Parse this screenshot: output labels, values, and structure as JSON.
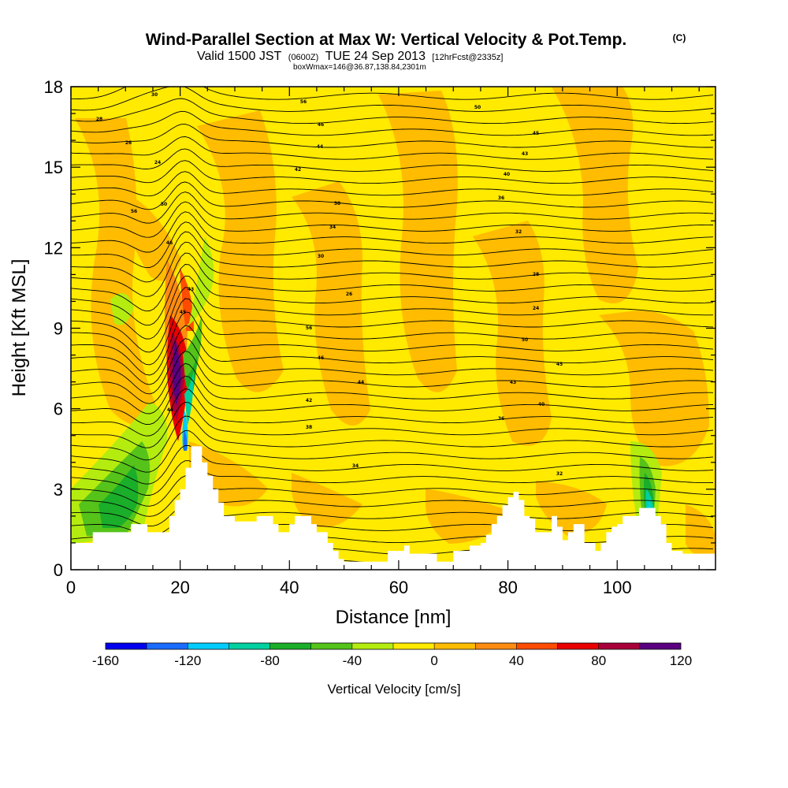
{
  "title": {
    "main": "Wind-Parallel Section at Max W: Vertical Velocity & Pot.Temp.",
    "copyright": "(C)",
    "valid_prefix": "Valid 1500 JST",
    "valid_utc": "(0600Z)",
    "valid_date": "TUE 24 Sep 2013",
    "forecast": "[12hrFcst@2335z]",
    "box": "boxWmax=146@36.87,138.84,2301m"
  },
  "chart_data": {
    "type": "heatmap",
    "xlabel": "Distance [nm]",
    "ylabel": "Height [Kft MSL]",
    "xlim": [
      0,
      118
    ],
    "ylim": [
      0,
      18
    ],
    "xticks": [
      0,
      20,
      40,
      60,
      80,
      100
    ],
    "yticks": [
      0,
      3,
      6,
      9,
      12,
      15,
      18
    ],
    "colorbar": {
      "label": "Vertical Velocity [cm/s]",
      "min": -160,
      "max": 120,
      "step": 20,
      "tick_labels": [
        "-160",
        "-120",
        "-80",
        "-40",
        "0",
        "40",
        "80",
        "120"
      ],
      "colors": [
        "#0000ee",
        "#1a6cff",
        "#00ccff",
        "#00d0a0",
        "#1aae2a",
        "#55c31a",
        "#b4ec10",
        "#ffea00",
        "#ffbc00",
        "#ff8c10",
        "#ff4c00",
        "#e80000",
        "#a8003a",
        "#5a0080"
      ]
    },
    "contour_field": "Potential Temperature",
    "contour_labels": [
      "56",
      "50",
      "46",
      "45",
      "44",
      "43",
      "42",
      "40",
      "38",
      "36",
      "34",
      "32",
      "30",
      "28",
      "26",
      "24"
    ],
    "terrain_height_kft": [
      [
        0,
        1.0
      ],
      [
        3,
        1.0
      ],
      [
        4,
        1.4
      ],
      [
        10,
        1.4
      ],
      [
        11,
        1.7
      ],
      [
        13,
        1.7
      ],
      [
        14,
        1.4
      ],
      [
        17,
        1.4
      ],
      [
        18,
        2.0
      ],
      [
        19,
        2.6
      ],
      [
        20,
        3.0
      ],
      [
        21,
        3.8
      ],
      [
        22,
        4.6
      ],
      [
        23,
        4.6
      ],
      [
        24,
        4.0
      ],
      [
        25,
        3.5
      ],
      [
        26,
        3.0
      ],
      [
        27,
        2.5
      ],
      [
        28,
        2.0
      ],
      [
        30,
        1.8
      ],
      [
        33,
        1.8
      ],
      [
        34,
        2.0
      ],
      [
        36,
        2.0
      ],
      [
        37,
        1.7
      ],
      [
        38,
        1.4
      ],
      [
        39,
        1.4
      ],
      [
        40,
        1.7
      ],
      [
        41,
        2.0
      ],
      [
        43,
        2.0
      ],
      [
        44,
        1.7
      ],
      [
        45,
        1.4
      ],
      [
        46,
        1.4
      ],
      [
        47,
        1.0
      ],
      [
        48,
        0.7
      ],
      [
        49,
        0.4
      ],
      [
        50,
        0.3
      ],
      [
        57,
        0.3
      ],
      [
        58,
        0.7
      ],
      [
        60,
        0.7
      ],
      [
        61,
        0.9
      ],
      [
        62,
        0.6
      ],
      [
        66,
        0.6
      ],
      [
        67,
        0.3
      ],
      [
        69,
        0.3
      ],
      [
        70,
        0.7
      ],
      [
        72,
        0.7
      ],
      [
        73,
        0.9
      ],
      [
        75,
        1.0
      ],
      [
        76,
        1.3
      ],
      [
        77,
        1.7
      ],
      [
        78,
        2.0
      ],
      [
        79,
        2.4
      ],
      [
        80,
        2.7
      ],
      [
        81,
        2.9
      ],
      [
        82,
        2.6
      ],
      [
        83,
        2.0
      ],
      [
        84,
        1.9
      ],
      [
        85,
        1.4
      ],
      [
        87,
        1.4
      ],
      [
        88,
        2.0
      ],
      [
        89,
        1.6
      ],
      [
        90,
        1.1
      ],
      [
        91,
        1.4
      ],
      [
        92,
        1.7
      ],
      [
        93,
        1.7
      ],
      [
        94,
        1.0
      ],
      [
        96,
        0.7
      ],
      [
        97,
        1.0
      ],
      [
        98,
        1.4
      ],
      [
        99,
        1.6
      ],
      [
        100,
        1.7
      ],
      [
        101,
        2.0
      ],
      [
        103,
        2.0
      ],
      [
        104,
        2.3
      ],
      [
        105,
        2.3
      ],
      [
        106,
        2.3
      ],
      [
        107,
        2.0
      ],
      [
        108,
        1.7
      ],
      [
        109,
        1.0
      ],
      [
        110,
        0.7
      ],
      [
        112,
        0.6
      ],
      [
        118,
        0.4
      ]
    ]
  }
}
